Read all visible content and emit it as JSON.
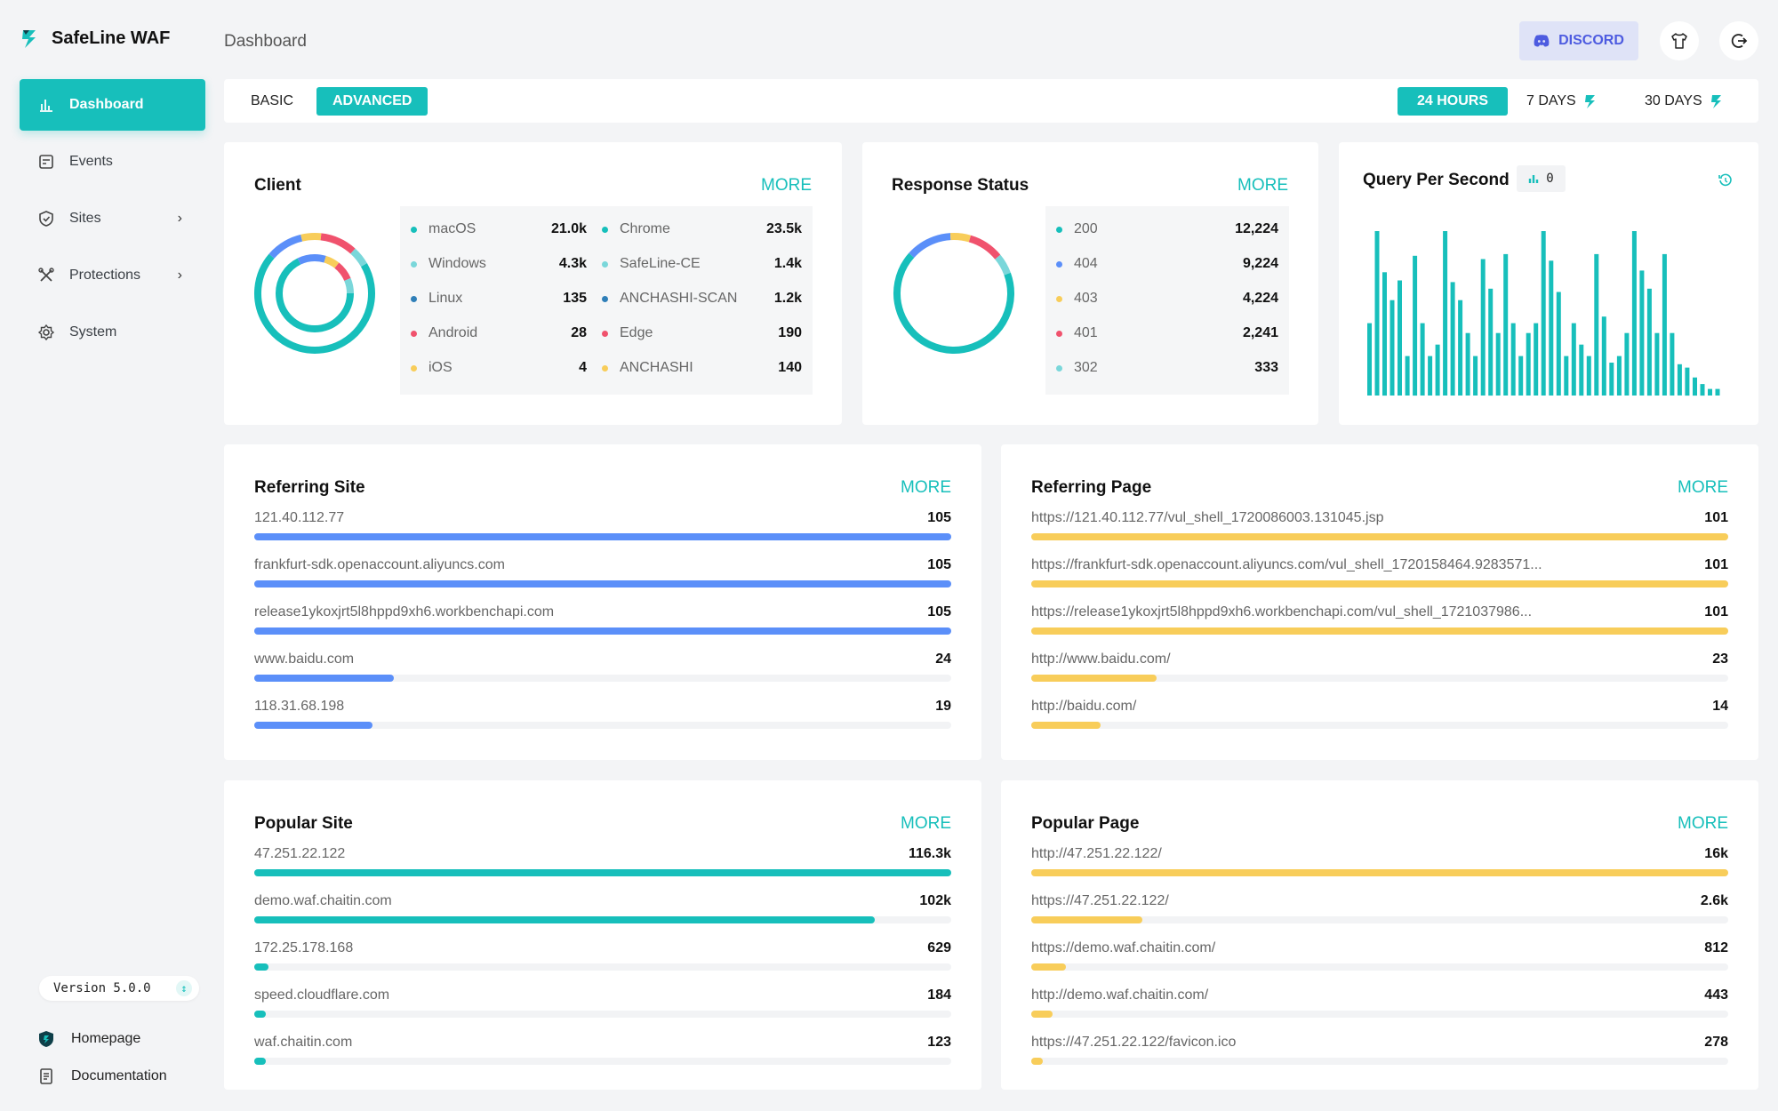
{
  "app": {
    "name": "SafeLine WAF"
  },
  "sidebar": {
    "items": [
      {
        "label": "Dashboard",
        "icon": "bar-chart-icon",
        "active": true
      },
      {
        "label": "Events",
        "icon": "events-icon"
      },
      {
        "label": "Sites",
        "icon": "shield-icon",
        "has_submenu": true
      },
      {
        "label": "Protections",
        "icon": "tools-icon",
        "has_submenu": true
      },
      {
        "label": "System",
        "icon": "gear-icon"
      }
    ],
    "version": "Version 5.0.0",
    "links": [
      {
        "label": "Homepage",
        "icon": "shield-logo-icon"
      },
      {
        "label": "Documentation",
        "icon": "document-icon"
      }
    ]
  },
  "header": {
    "title": "Dashboard",
    "discord_label": "DISCORD"
  },
  "tabs": {
    "mode": [
      "BASIC",
      "ADVANCED"
    ],
    "mode_active": "ADVANCED",
    "ranges": [
      "24 HOURS",
      "7 DAYS",
      "30 DAYS"
    ],
    "range_active": "24 HOURS"
  },
  "more_label": "MORE",
  "colors": {
    "accent": "#17bfbb",
    "blue": "#5b8ff9",
    "yellow": "#f8cd5a",
    "red": "#f0526d",
    "light_teal": "#7ad7da",
    "dark_blue": "#2f7fb8"
  },
  "client": {
    "title": "Client",
    "os": [
      {
        "name": "macOS",
        "value": "21.0k",
        "color": "#17bfbb"
      },
      {
        "name": "Windows",
        "value": "4.3k",
        "color": "#7ad7da"
      },
      {
        "name": "Linux",
        "value": "135",
        "color": "#2f7fb8"
      },
      {
        "name": "Android",
        "value": "28",
        "color": "#f0526d"
      },
      {
        "name": "iOS",
        "value": "4",
        "color": "#f8cd5a"
      }
    ],
    "browsers": [
      {
        "name": "Chrome",
        "value": "23.5k",
        "color": "#17bfbb"
      },
      {
        "name": "SafeLine-CE",
        "value": "1.4k",
        "color": "#7ad7da"
      },
      {
        "name": "ANCHASHI-SCAN",
        "value": "1.2k",
        "color": "#2f7fb8"
      },
      {
        "name": "Edge",
        "value": "190",
        "color": "#f0526d"
      },
      {
        "name": "ANCHASHI",
        "value": "140",
        "color": "#f8cd5a"
      }
    ]
  },
  "response": {
    "title": "Response Status",
    "items": [
      {
        "name": "200",
        "value": "12,224",
        "color": "#17bfbb"
      },
      {
        "name": "404",
        "value": "9,224",
        "color": "#5b8ff9"
      },
      {
        "name": "403",
        "value": "4,224",
        "color": "#f8cd5a"
      },
      {
        "name": "401",
        "value": "2,241",
        "color": "#f0526d"
      },
      {
        "name": "302",
        "value": "333",
        "color": "#7ad7da"
      }
    ]
  },
  "qps": {
    "title": "Query Per Second",
    "badge": "0",
    "bars": [
      0.44,
      1.0,
      0.75,
      0.58,
      0.7,
      0.24,
      0.85,
      0.44,
      0.24,
      0.31,
      1.0,
      0.69,
      0.58,
      0.38,
      0.24,
      0.83,
      0.65,
      0.38,
      0.86,
      0.44,
      0.24,
      0.38,
      0.44,
      1.0,
      0.82,
      0.63,
      0.24,
      0.44,
      0.31,
      0.24,
      0.86,
      0.48,
      0.2,
      0.24,
      0.38,
      1.0,
      0.76,
      0.65,
      0.38,
      0.86,
      0.38,
      0.19,
      0.17,
      0.11,
      0.07,
      0.04,
      0.04
    ]
  },
  "referring_site": {
    "title": "Referring Site",
    "rows": [
      {
        "label": "121.40.112.77",
        "value": "105",
        "fraction": 1.0
      },
      {
        "label": "frankfurt-sdk.openaccount.aliyuncs.com",
        "value": "105",
        "fraction": 1.0
      },
      {
        "label": "release1ykoxjrt5l8hppd9xh6.workbenchapi.com",
        "value": "105",
        "fraction": 1.0
      },
      {
        "label": "www.baidu.com",
        "value": "24",
        "fraction": 0.2
      },
      {
        "label": "118.31.68.198",
        "value": "19",
        "fraction": 0.17
      }
    ]
  },
  "referring_page": {
    "title": "Referring Page",
    "rows": [
      {
        "label": "https://121.40.112.77/vul_shell_1720086003.131045.jsp",
        "value": "101",
        "fraction": 1.0
      },
      {
        "label": "https://frankfurt-sdk.openaccount.aliyuncs.com/vul_shell_1720158464.9283571...",
        "value": "101",
        "fraction": 1.0
      },
      {
        "label": "https://release1ykoxjrt5l8hppd9xh6.workbenchapi.com/vul_shell_1721037986...",
        "value": "101",
        "fraction": 1.0
      },
      {
        "label": "http://www.baidu.com/",
        "value": "23",
        "fraction": 0.18
      },
      {
        "label": "http://baidu.com/",
        "value": "14",
        "fraction": 0.1
      }
    ]
  },
  "popular_site": {
    "title": "Popular Site",
    "rows": [
      {
        "label": "47.251.22.122",
        "value": "116.3k",
        "fraction": 1.0
      },
      {
        "label": "demo.waf.chaitin.com",
        "value": "102k",
        "fraction": 0.89
      },
      {
        "label": "172.25.178.168",
        "value": "629",
        "fraction": 0.02
      },
      {
        "label": "speed.cloudflare.com",
        "value": "184",
        "fraction": 0.01
      },
      {
        "label": "waf.chaitin.com",
        "value": "123",
        "fraction": 0.01
      }
    ]
  },
  "popular_page": {
    "title": "Popular Page",
    "rows": [
      {
        "label": "http://47.251.22.122/",
        "value": "16k",
        "fraction": 1.0
      },
      {
        "label": "https://47.251.22.122/",
        "value": "2.6k",
        "fraction": 0.16
      },
      {
        "label": "https://demo.waf.chaitin.com/",
        "value": "812",
        "fraction": 0.05
      },
      {
        "label": "http://demo.waf.chaitin.com/",
        "value": "443",
        "fraction": 0.03
      },
      {
        "label": "https://47.251.22.122/favicon.ico",
        "value": "278",
        "fraction": 0.01
      }
    ]
  }
}
